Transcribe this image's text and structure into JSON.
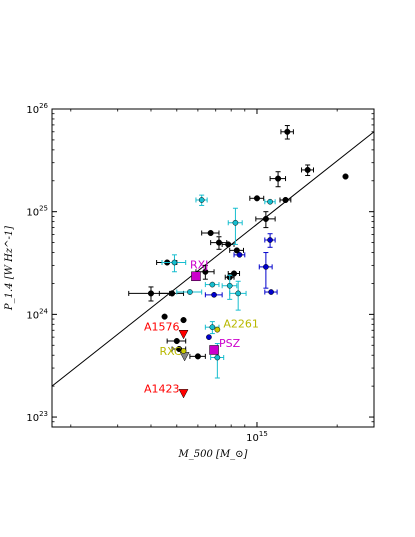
{
  "chart_data": {
    "type": "scatter",
    "title": "",
    "xlabel": "M_500 [M_⊙]",
    "ylabel": "P_1.4 [W Hz^-1]",
    "xscale": "log",
    "yscale": "log",
    "xlim": [
      170000000000000.0,
      2750000000000000.0
    ],
    "ylim": [
      8e+22,
      1e+26
    ],
    "x_tick_labels": [
      {
        "value": 1000000000000000.0,
        "label": "10^15"
      }
    ],
    "y_tick_labels": [
      {
        "value": 1e+23,
        "label": "10^23"
      },
      {
        "value": 1e+24,
        "label": "10^24"
      },
      {
        "value": 1e+25,
        "label": "10^25"
      },
      {
        "value": 1e+26,
        "label": "10^26"
      }
    ],
    "grid": false,
    "fit_line": {
      "x": [
        170000000000000.0,
        2750000000000000.0
      ],
      "y": [
        2e+23,
        6e+25
      ],
      "color": "#000000"
    },
    "series": [
      {
        "color": "#000000",
        "marker": "circle",
        "points": [
          {
            "x": 1300000000000000.0,
            "y": 6e+25,
            "xerr": 70000000000000.0,
            "yerr": 9e+24
          },
          {
            "x": 1550000000000000.0,
            "y": 2.55e+25,
            "xerr": 80000000000000.0,
            "yerr": 3e+24
          },
          {
            "x": 2150000000000000.0,
            "y": 2.2e+25
          },
          {
            "x": 1200000000000000.0,
            "y": 2.1e+25,
            "xerr": 80000000000000.0,
            "yerr": 3.5e+24
          },
          {
            "x": 1000000000000000.0,
            "y": 1.35e+25,
            "xerr": 60000000000000.0
          },
          {
            "x": 1280000000000000.0,
            "y": 1.3e+25,
            "xerr": 60000000000000.0
          },
          {
            "x": 1080000000000000.0,
            "y": 8.5e+24,
            "xerr": 90000000000000.0,
            "yerr": 1.5e+24
          },
          {
            "x": 670000000000000.0,
            "y": 6.2e+24,
            "xerr": 50000000000000.0
          },
          {
            "x": 720000000000000.0,
            "y": 5e+24,
            "xerr": 50000000000000.0,
            "yerr": 7e+23
          },
          {
            "x": 780000000000000.0,
            "y": 4.8e+24,
            "xerr": 40000000000000.0
          },
          {
            "x": 840000000000000.0,
            "y": 4.2e+24,
            "xerr": 50000000000000.0
          },
          {
            "x": 820000000000000.0,
            "y": 2.5e+24,
            "xerr": 40000000000000.0
          },
          {
            "x": 790000000000000.0,
            "y": 2.3e+24,
            "xerr": 30000000000000.0
          },
          {
            "x": 640000000000000.0,
            "y": 2.6e+24,
            "xerr": 50000000000000.0,
            "yerr": 4e+23
          },
          {
            "x": 460000000000000.0,
            "y": 3.2e+24,
            "xerr": 40000000000000.0
          },
          {
            "x": 400000000000000.0,
            "y": 1.6e+24,
            "xerr": 70000000000000.0,
            "yerr": 2.5e+23
          },
          {
            "x": 480000000000000.0,
            "y": 1.6e+24,
            "xerr": 50000000000000.0
          },
          {
            "x": 450000000000000.0,
            "y": 9.5e+23
          },
          {
            "x": 530000000000000.0,
            "y": 8.8e+23
          },
          {
            "x": 500000000000000.0,
            "y": 5.5e+23,
            "xerr": 40000000000000.0
          },
          {
            "x": 510000000000000.0,
            "y": 4.6e+23,
            "xerr": 30000000000000.0
          },
          {
            "x": 600000000000000.0,
            "y": 3.9e+23,
            "xerr": 40000000000000.0
          }
        ]
      },
      {
        "color": "#17becf",
        "marker": "circle",
        "points": [
          {
            "x": 620000000000000.0,
            "y": 1.3e+25,
            "xerr": 30000000000000.0,
            "yerr": 1.5e+24
          },
          {
            "x": 1120000000000000.0,
            "y": 1.25e+25,
            "xerr": 50000000000000.0
          },
          {
            "x": 830000000000000.0,
            "y": 7.8e+24,
            "xerr": 50000000000000.0,
            "yerr": 3e+24
          },
          {
            "x": 490000000000000.0,
            "y": 3.2e+24,
            "xerr": 50000000000000.0,
            "yerr": 6e+23
          },
          {
            "x": 560000000000000.0,
            "y": 1.65e+24,
            "xerr": 60000000000000.0
          },
          {
            "x": 680000000000000.0,
            "y": 1.95e+24,
            "xerr": 40000000000000.0
          },
          {
            "x": 790000000000000.0,
            "y": 1.9e+24,
            "xerr": 50000000000000.0,
            "yerr": 5e+23
          },
          {
            "x": 850000000000000.0,
            "y": 1.6e+24,
            "xerr": 60000000000000.0,
            "yerr": 5e+23
          },
          {
            "x": 680000000000000.0,
            "y": 7.5e+23,
            "xerr": 40000000000000.0,
            "yerr": 1e+23
          },
          {
            "x": 710000000000000.0,
            "y": 3.8e+23,
            "xerr": 40000000000000.0,
            "yerr": 1.4e+23
          }
        ]
      },
      {
        "color": "#0000cc",
        "marker": "circle",
        "points": [
          {
            "x": 860000000000000.0,
            "y": 3.8e+24,
            "xerr": 40000000000000.0
          },
          {
            "x": 1120000000000000.0,
            "y": 5.3e+24,
            "xerr": 50000000000000.0,
            "yerr": 8e+23
          },
          {
            "x": 1080000000000000.0,
            "y": 2.9e+24,
            "xerr": 60000000000000.0,
            "yerr": 1.1e+24
          },
          {
            "x": 1130000000000000.0,
            "y": 1.65e+24,
            "xerr": 60000000000000.0
          },
          {
            "x": 690000000000000.0,
            "y": 1.55e+24,
            "xerr": 50000000000000.0
          },
          {
            "x": 660000000000000.0,
            "y": 6e+23
          }
        ]
      }
    ],
    "labeled_points": [
      {
        "label": "RXJ",
        "label_color": "#cc00cc",
        "x": 590000000000000.0,
        "y": 2.35e+24,
        "marker": "square",
        "color": "#cc00cc"
      },
      {
        "label": "A1576",
        "label_color": "#ff0000",
        "x": 530000000000000.0,
        "y": 6.4e+23,
        "marker": "triangle-down",
        "color": "#ff0000"
      },
      {
        "label": "A2261",
        "label_color": "#b8b800",
        "x": 710000000000000.0,
        "y": 7.1e+23,
        "marker": "circle",
        "color": "#cccc00"
      },
      {
        "label": "RXC",
        "label_color": "#b8b800",
        "x": 530000000000000.0,
        "y": 4.4e+23,
        "marker": "circle",
        "color": "#cccc00"
      },
      {
        "label": "PSZ",
        "label_color": "#cc00cc",
        "x": 690000000000000.0,
        "y": 4.5e+23,
        "marker": "square",
        "color": "#cc00cc"
      },
      {
        "label": "A1423",
        "label_color": "#ff0000",
        "x": 530000000000000.0,
        "y": 1.7e+23,
        "marker": "triangle-down",
        "color": "#ff0000"
      }
    ],
    "unlabeled_markers": [
      {
        "x": 535000000000000.0,
        "y": 3.9e+23,
        "marker": "triangle-down",
        "color": "#888888"
      }
    ]
  }
}
